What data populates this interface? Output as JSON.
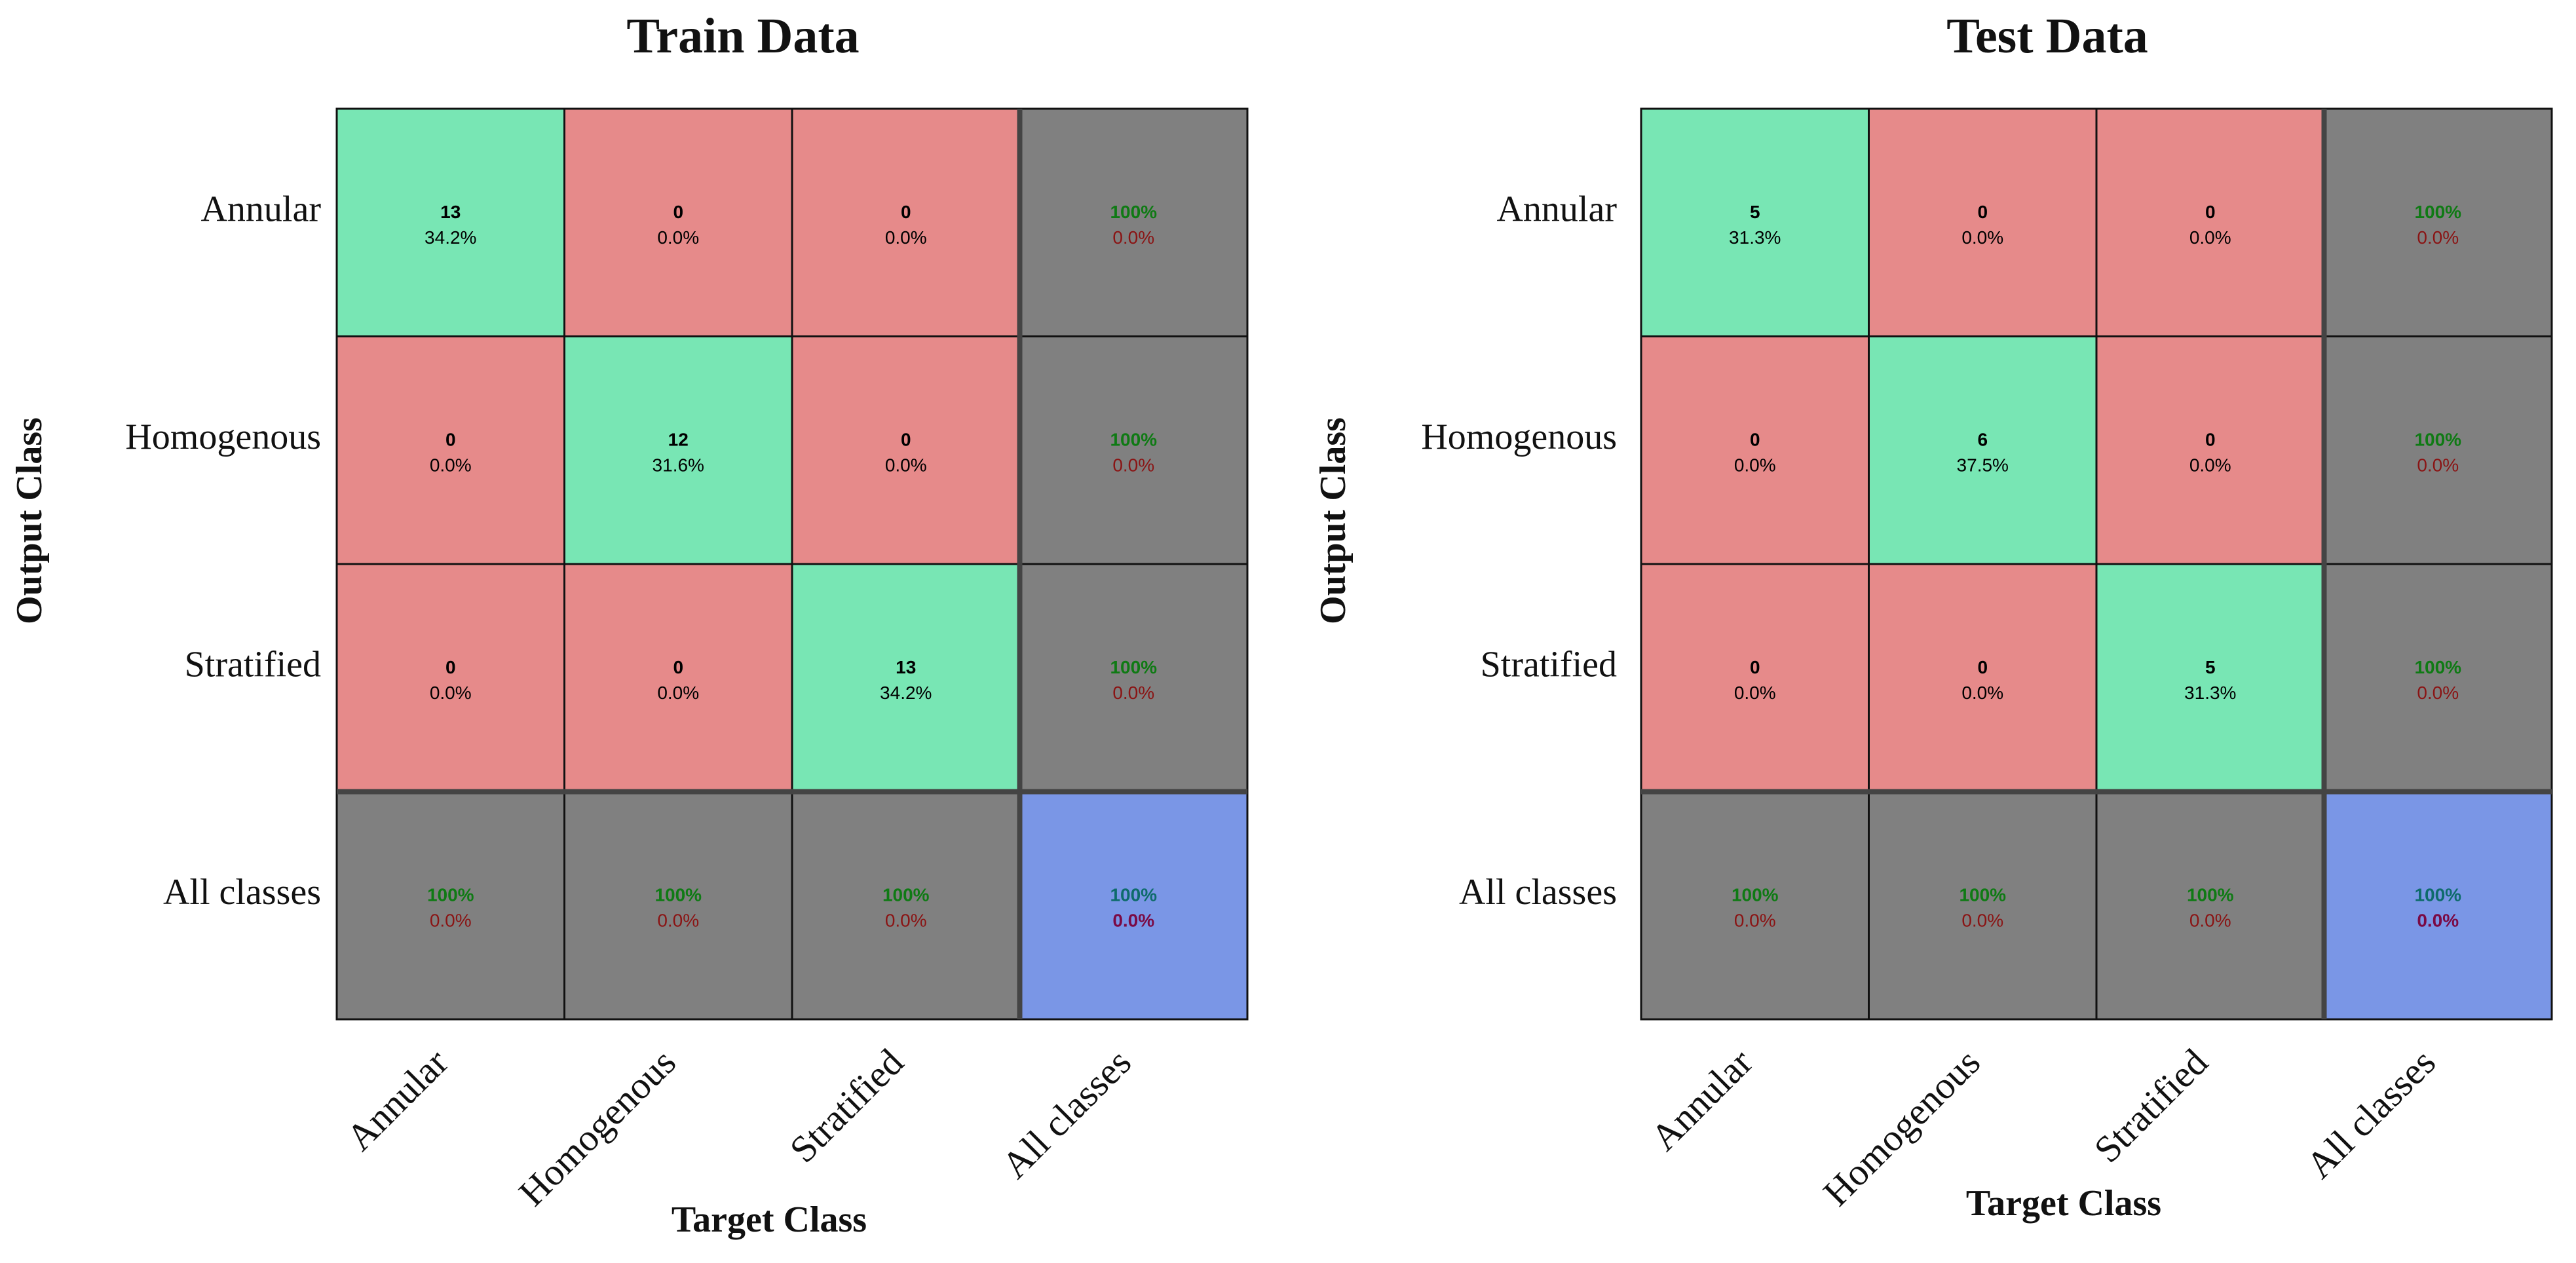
{
  "chart_data": [
    {
      "type": "confusion-matrix",
      "title": "Train Data",
      "x_label": "Target Class",
      "y_label": "Output Class",
      "row_labels": [
        "Annular",
        "Homogenous",
        "Stratified",
        "All classes"
      ],
      "col_labels": [
        "Annular",
        "Homogenous",
        "Stratified",
        "All classes"
      ],
      "cells": [
        [
          {
            "count": 13,
            "percent": "34.2%"
          },
          {
            "count": 0,
            "percent": "0.0%"
          },
          {
            "count": 0,
            "percent": "0.0%"
          }
        ],
        [
          {
            "count": 0,
            "percent": "0.0%"
          },
          {
            "count": 12,
            "percent": "31.6%"
          },
          {
            "count": 0,
            "percent": "0.0%"
          }
        ],
        [
          {
            "count": 0,
            "percent": "0.0%"
          },
          {
            "count": 0,
            "percent": "0.0%"
          },
          {
            "count": 13,
            "percent": "34.2%"
          }
        ]
      ],
      "row_summary": [
        {
          "correct": "100%",
          "wrong": "0.0%"
        },
        {
          "correct": "100%",
          "wrong": "0.0%"
        },
        {
          "correct": "100%",
          "wrong": "0.0%"
        }
      ],
      "col_summary": [
        {
          "correct": "100%",
          "wrong": "0.0%"
        },
        {
          "correct": "100%",
          "wrong": "0.0%"
        },
        {
          "correct": "100%",
          "wrong": "0.0%"
        }
      ],
      "total": {
        "correct": "100%",
        "wrong": "0.0%"
      }
    },
    {
      "type": "confusion-matrix",
      "title": "Test Data",
      "x_label": "Target Class",
      "y_label": "Output Class",
      "row_labels": [
        "Annular",
        "Homogenous",
        "Stratified",
        "All classes"
      ],
      "col_labels": [
        "Annular",
        "Homogenous",
        "Stratified",
        "All classes"
      ],
      "cells": [
        [
          {
            "count": 5,
            "percent": "31.3%"
          },
          {
            "count": 0,
            "percent": "0.0%"
          },
          {
            "count": 0,
            "percent": "0.0%"
          }
        ],
        [
          {
            "count": 0,
            "percent": "0.0%"
          },
          {
            "count": 6,
            "percent": "37.5%"
          },
          {
            "count": 0,
            "percent": "0.0%"
          }
        ],
        [
          {
            "count": 0,
            "percent": "0.0%"
          },
          {
            "count": 0,
            "percent": "0.0%"
          },
          {
            "count": 5,
            "percent": "31.3%"
          }
        ]
      ],
      "row_summary": [
        {
          "correct": "100%",
          "wrong": "0.0%"
        },
        {
          "correct": "100%",
          "wrong": "0.0%"
        },
        {
          "correct": "100%",
          "wrong": "0.0%"
        }
      ],
      "col_summary": [
        {
          "correct": "100%",
          "wrong": "0.0%"
        },
        {
          "correct": "100%",
          "wrong": "0.0%"
        },
        {
          "correct": "100%",
          "wrong": "0.0%"
        }
      ],
      "total": {
        "correct": "100%",
        "wrong": "0.0%"
      }
    }
  ]
}
